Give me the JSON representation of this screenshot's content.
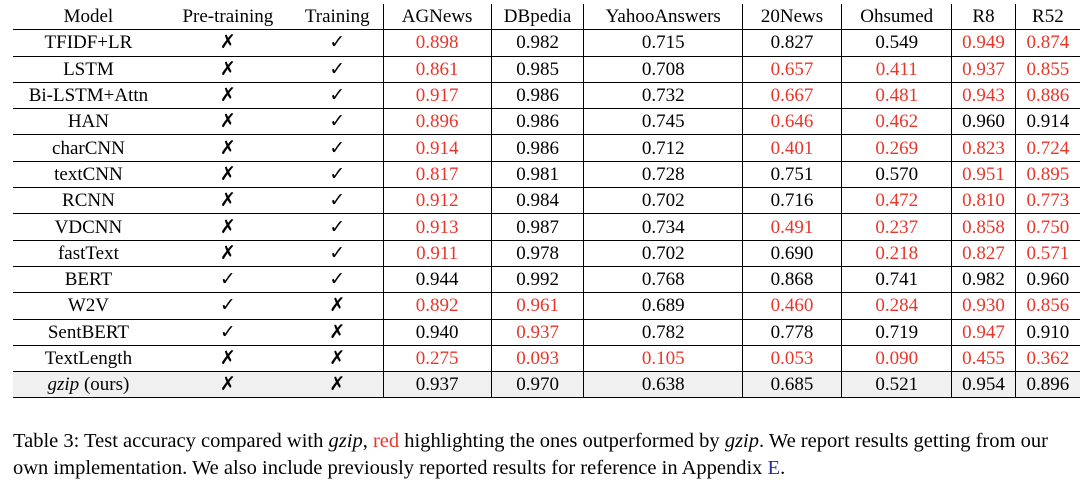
{
  "table": {
    "headers": [
      "Model",
      "Pre-training",
      "Training",
      "AGNews",
      "DBpedia",
      "YahooAnswers",
      "20News",
      "Ohsumed",
      "R8",
      "R52"
    ],
    "rows": [
      {
        "model": "TFIDF+LR",
        "pre": "✗",
        "train": "✓",
        "vals": [
          {
            "v": "0.898",
            "red": true
          },
          {
            "v": "0.982",
            "red": false
          },
          {
            "v": "0.715",
            "red": false
          },
          {
            "v": "0.827",
            "red": false
          },
          {
            "v": "0.549",
            "red": false
          },
          {
            "v": "0.949",
            "red": true
          },
          {
            "v": "0.874",
            "red": true
          }
        ]
      },
      {
        "model": "LSTM",
        "pre": "✗",
        "train": "✓",
        "vals": [
          {
            "v": "0.861",
            "red": true
          },
          {
            "v": "0.985",
            "red": false
          },
          {
            "v": "0.708",
            "red": false
          },
          {
            "v": "0.657",
            "red": true
          },
          {
            "v": "0.411",
            "red": true
          },
          {
            "v": "0.937",
            "red": true
          },
          {
            "v": "0.855",
            "red": true
          }
        ]
      },
      {
        "model": "Bi-LSTM+Attn",
        "pre": "✗",
        "train": "✓",
        "vals": [
          {
            "v": "0.917",
            "red": true
          },
          {
            "v": "0.986",
            "red": false
          },
          {
            "v": "0.732",
            "red": false
          },
          {
            "v": "0.667",
            "red": true
          },
          {
            "v": "0.481",
            "red": true
          },
          {
            "v": "0.943",
            "red": true
          },
          {
            "v": "0.886",
            "red": true
          }
        ]
      },
      {
        "model": "HAN",
        "pre": "✗",
        "train": "✓",
        "vals": [
          {
            "v": "0.896",
            "red": true
          },
          {
            "v": "0.986",
            "red": false
          },
          {
            "v": "0.745",
            "red": false
          },
          {
            "v": "0.646",
            "red": true
          },
          {
            "v": "0.462",
            "red": true
          },
          {
            "v": "0.960",
            "red": false
          },
          {
            "v": "0.914",
            "red": false
          }
        ]
      },
      {
        "model": "charCNN",
        "pre": "✗",
        "train": "✓",
        "vals": [
          {
            "v": "0.914",
            "red": true
          },
          {
            "v": "0.986",
            "red": false
          },
          {
            "v": "0.712",
            "red": false
          },
          {
            "v": "0.401",
            "red": true
          },
          {
            "v": "0.269",
            "red": true
          },
          {
            "v": "0.823",
            "red": true
          },
          {
            "v": "0.724",
            "red": true
          }
        ]
      },
      {
        "model": "textCNN",
        "pre": "✗",
        "train": "✓",
        "vals": [
          {
            "v": "0.817",
            "red": true
          },
          {
            "v": "0.981",
            "red": false
          },
          {
            "v": "0.728",
            "red": false
          },
          {
            "v": "0.751",
            "red": false
          },
          {
            "v": "0.570",
            "red": false
          },
          {
            "v": "0.951",
            "red": true
          },
          {
            "v": "0.895",
            "red": true
          }
        ]
      },
      {
        "model": "RCNN",
        "pre": "✗",
        "train": "✓",
        "vals": [
          {
            "v": "0.912",
            "red": true
          },
          {
            "v": "0.984",
            "red": false
          },
          {
            "v": "0.702",
            "red": false
          },
          {
            "v": "0.716",
            "red": false
          },
          {
            "v": "0.472",
            "red": true
          },
          {
            "v": "0.810",
            "red": true
          },
          {
            "v": "0.773",
            "red": true
          }
        ]
      },
      {
        "model": "VDCNN",
        "pre": "✗",
        "train": "✓",
        "vals": [
          {
            "v": "0.913",
            "red": true
          },
          {
            "v": "0.987",
            "red": false
          },
          {
            "v": "0.734",
            "red": false
          },
          {
            "v": "0.491",
            "red": true
          },
          {
            "v": "0.237",
            "red": true
          },
          {
            "v": "0.858",
            "red": true
          },
          {
            "v": "0.750",
            "red": true
          }
        ]
      },
      {
        "model": "fastText",
        "pre": "✗",
        "train": "✓",
        "vals": [
          {
            "v": "0.911",
            "red": true
          },
          {
            "v": "0.978",
            "red": false
          },
          {
            "v": "0.702",
            "red": false
          },
          {
            "v": "0.690",
            "red": false
          },
          {
            "v": "0.218",
            "red": true
          },
          {
            "v": "0.827",
            "red": true
          },
          {
            "v": "0.571",
            "red": true
          }
        ]
      },
      {
        "model": "BERT",
        "pre": "✓",
        "train": "✓",
        "vals": [
          {
            "v": "0.944",
            "red": false
          },
          {
            "v": "0.992",
            "red": false
          },
          {
            "v": "0.768",
            "red": false
          },
          {
            "v": "0.868",
            "red": false
          },
          {
            "v": "0.741",
            "red": false
          },
          {
            "v": "0.982",
            "red": false
          },
          {
            "v": "0.960",
            "red": false
          }
        ]
      },
      {
        "model": "W2V",
        "pre": "✓",
        "train": "✗",
        "vals": [
          {
            "v": "0.892",
            "red": true
          },
          {
            "v": "0.961",
            "red": true
          },
          {
            "v": "0.689",
            "red": false
          },
          {
            "v": "0.460",
            "red": true
          },
          {
            "v": "0.284",
            "red": true
          },
          {
            "v": "0.930",
            "red": true
          },
          {
            "v": "0.856",
            "red": true
          }
        ]
      },
      {
        "model": "SentBERT",
        "pre": "✓",
        "train": "✗",
        "vals": [
          {
            "v": "0.940",
            "red": false
          },
          {
            "v": "0.937",
            "red": true
          },
          {
            "v": "0.782",
            "red": false
          },
          {
            "v": "0.778",
            "red": false
          },
          {
            "v": "0.719",
            "red": false
          },
          {
            "v": "0.947",
            "red": true
          },
          {
            "v": "0.910",
            "red": false
          }
        ]
      },
      {
        "model": "TextLength",
        "pre": "✗",
        "train": "✗",
        "vals": [
          {
            "v": "0.275",
            "red": true
          },
          {
            "v": "0.093",
            "red": true
          },
          {
            "v": "0.105",
            "red": true
          },
          {
            "v": "0.053",
            "red": true
          },
          {
            "v": "0.090",
            "red": true
          },
          {
            "v": "0.455",
            "red": true
          },
          {
            "v": "0.362",
            "red": true
          }
        ]
      }
    ],
    "ours": {
      "model_italic": "gzip",
      "model_suffix": " (ours)",
      "pre": "✗",
      "train": "✗",
      "vals": [
        {
          "v": "0.937",
          "red": false
        },
        {
          "v": "0.970",
          "red": false
        },
        {
          "v": "0.638",
          "red": false
        },
        {
          "v": "0.685",
          "red": false
        },
        {
          "v": "0.521",
          "red": false
        },
        {
          "v": "0.954",
          "red": false
        },
        {
          "v": "0.896",
          "red": false
        }
      ]
    }
  },
  "caption": {
    "p1": "Table 3: Test accuracy compared with ",
    "i1": "gzip",
    "p2": ", ",
    "red_word": "red",
    "p3": " highlighting the ones outperformed by ",
    "i2": "gzip",
    "p4": ". We report results getting from our own implementation. We also include previously reported results for reference in Appendix ",
    "link": "E",
    "p5": "."
  },
  "colors": {
    "highlight": "#e8362b",
    "link": "#2a2aa8",
    "ours_row_bg": "#f0f0f0"
  }
}
